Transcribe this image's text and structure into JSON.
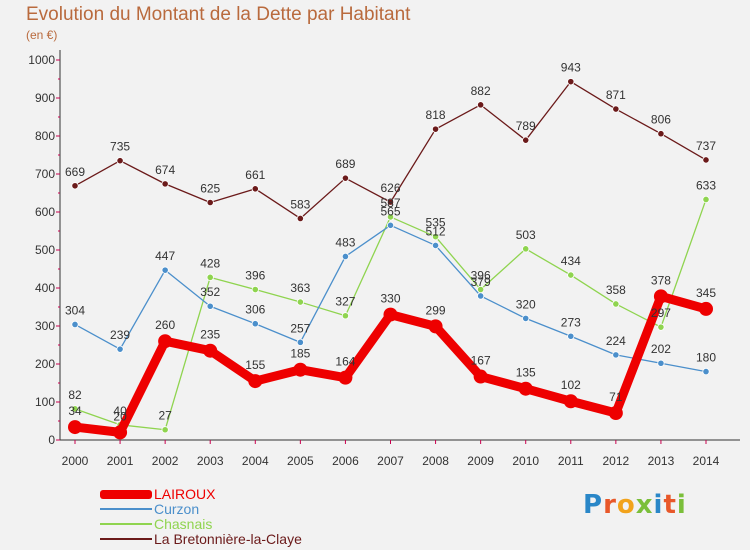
{
  "title": "Evolution du Montant de la Dette par Habitant",
  "unit": "(en €)",
  "logo": "Proxiti",
  "colors": {
    "background": "#f2f2f2",
    "title": "#b96a3d",
    "axis": "#333333",
    "tick": "#c9004f"
  },
  "chart_data": {
    "type": "line",
    "x": [
      "2000",
      "2001",
      "2002",
      "2003",
      "2004",
      "2005",
      "2006",
      "2007",
      "2008",
      "2009",
      "2010",
      "2011",
      "2012",
      "2013",
      "2014"
    ],
    "ylim": [
      0,
      1000
    ],
    "yticks": [
      0,
      100,
      200,
      300,
      400,
      500,
      600,
      700,
      800,
      900,
      1000
    ],
    "grid": false,
    "legend_position": "bottom-left",
    "series": [
      {
        "name": "LAIROUX",
        "color": "#ee0000",
        "values": [
          34,
          20,
          260,
          235,
          155,
          185,
          164,
          330,
          299,
          167,
          135,
          102,
          71,
          378,
          345
        ]
      },
      {
        "name": "Curzon",
        "color": "#4b8fcb",
        "values": [
          304,
          239,
          447,
          352,
          306,
          257,
          483,
          565,
          512,
          379,
          320,
          273,
          224,
          202,
          180
        ]
      },
      {
        "name": "Chasnais",
        "color": "#8fd44f",
        "values": [
          82,
          40,
          27,
          428,
          396,
          363,
          327,
          587,
          535,
          396,
          503,
          434,
          358,
          297,
          633
        ]
      },
      {
        "name": "La Bretonnière-la-Claye",
        "color": "#6b1a1a",
        "values": [
          669,
          735,
          674,
          625,
          661,
          583,
          689,
          626,
          818,
          882,
          789,
          943,
          871,
          806,
          737
        ]
      }
    ]
  }
}
